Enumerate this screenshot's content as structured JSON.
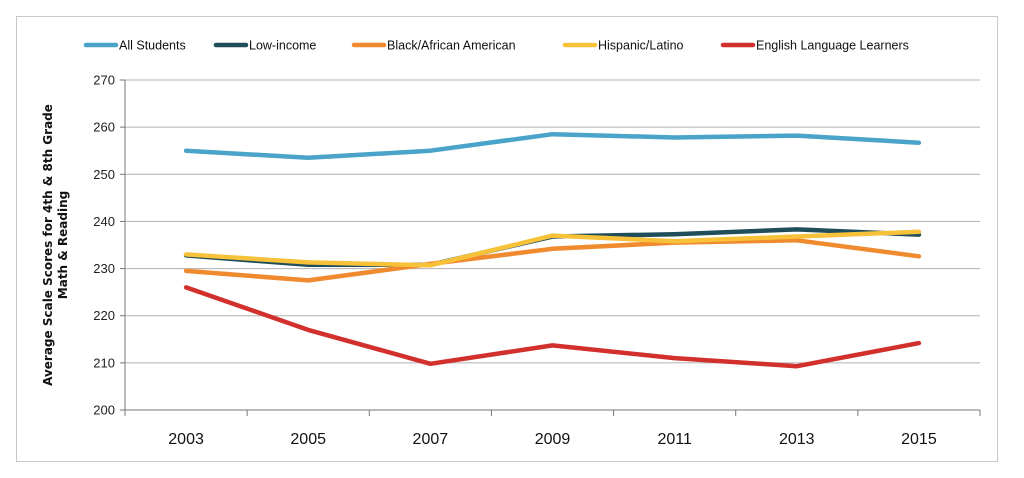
{
  "chart_data": {
    "type": "line",
    "title": "",
    "xlabel": "",
    "ylabel": "Average Scale Scores for 4th & 8th Grade Math & Reading",
    "ylabel_lines": [
      "Average Scale Scores for 4th & 8th Grade",
      "Math & Reading"
    ],
    "x": [
      "2003",
      "2005",
      "2007",
      "2009",
      "2011",
      "2013",
      "2015"
    ],
    "ylim": [
      200,
      270
    ],
    "yticks": [
      200,
      210,
      220,
      230,
      240,
      250,
      260,
      270
    ],
    "grid": true,
    "legend": "top",
    "series": [
      {
        "name": "All Students",
        "color": "#4aa3c8",
        "values": [
          255.0,
          253.5,
          255.0,
          258.5,
          257.8,
          258.2,
          256.7
        ]
      },
      {
        "name": "Low-income",
        "color": "#1f4e5a",
        "values": [
          232.8,
          230.8,
          230.8,
          236.8,
          237.3,
          238.3,
          237.2
        ]
      },
      {
        "name": "Black/African American",
        "color": "#f08a2e",
        "values": [
          229.5,
          227.5,
          231.0,
          234.2,
          235.5,
          236.0,
          232.6
        ]
      },
      {
        "name": "Hispanic/Latino",
        "color": "#f7c23a",
        "values": [
          233.0,
          231.3,
          230.7,
          237.0,
          235.8,
          236.8,
          237.8
        ]
      },
      {
        "name": "English Language Learners",
        "color": "#d2302c",
        "values": [
          226.0,
          217.0,
          209.8,
          213.7,
          211.0,
          209.3,
          214.2
        ]
      }
    ]
  }
}
